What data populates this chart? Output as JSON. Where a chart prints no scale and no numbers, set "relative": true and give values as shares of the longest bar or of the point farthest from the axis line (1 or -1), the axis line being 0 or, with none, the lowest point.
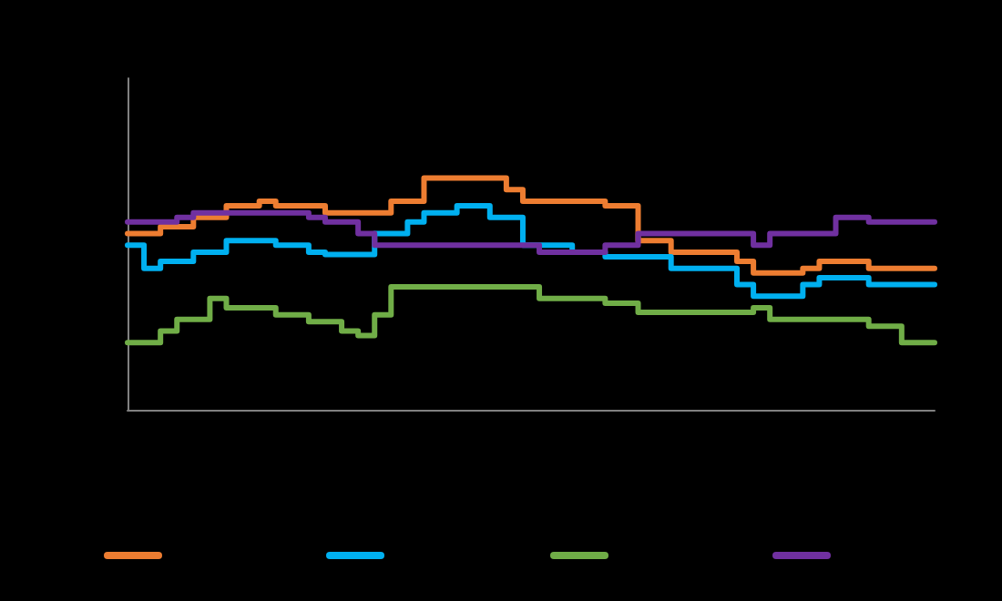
{
  "chart_data": {
    "type": "step",
    "relative": true,
    "grid": false,
    "categories": [
      null,
      null,
      null,
      null,
      null,
      null,
      null,
      null,
      null,
      null,
      null,
      null,
      null,
      null,
      null,
      null,
      null,
      null,
      null,
      null,
      null,
      null,
      null,
      null,
      null,
      null,
      null,
      null,
      null,
      null,
      null,
      null,
      null,
      null,
      null,
      null,
      null,
      null,
      null,
      null,
      null,
      null,
      null,
      null,
      null,
      null,
      null,
      null,
      null,
      null
    ],
    "series": [
      {
        "color": "#ed7d31",
        "values": [
          0.76,
          0.76,
          0.79,
          0.79,
          0.83,
          0.83,
          0.88,
          0.88,
          0.9,
          0.88,
          0.88,
          0.88,
          0.85,
          0.85,
          0.85,
          0.85,
          0.9,
          0.9,
          1.0,
          1.0,
          1.0,
          1.0,
          1.0,
          0.95,
          0.9,
          0.9,
          0.9,
          0.9,
          0.9,
          0.88,
          0.88,
          0.73,
          0.73,
          0.68,
          0.68,
          0.68,
          0.68,
          0.64,
          0.59,
          0.59,
          0.59,
          0.61,
          0.64,
          0.64,
          0.64,
          0.61,
          0.61,
          0.61,
          0.61,
          0.61
        ]
      },
      {
        "color": "#00b0f0",
        "values": [
          0.71,
          0.61,
          0.64,
          0.64,
          0.68,
          0.68,
          0.73,
          0.73,
          0.73,
          0.71,
          0.71,
          0.68,
          0.67,
          0.67,
          0.67,
          0.76,
          0.76,
          0.81,
          0.85,
          0.85,
          0.88,
          0.88,
          0.83,
          0.83,
          0.71,
          0.71,
          0.71,
          0.68,
          0.68,
          0.66,
          0.66,
          0.66,
          0.66,
          0.61,
          0.61,
          0.61,
          0.61,
          0.54,
          0.49,
          0.49,
          0.49,
          0.54,
          0.57,
          0.57,
          0.57,
          0.54,
          0.54,
          0.54,
          0.54,
          0.54
        ]
      },
      {
        "color": "#70ad47",
        "values": [
          0.29,
          0.29,
          0.34,
          0.39,
          0.39,
          0.48,
          0.44,
          0.44,
          0.44,
          0.41,
          0.41,
          0.38,
          0.38,
          0.34,
          0.32,
          0.41,
          0.53,
          0.53,
          0.53,
          0.53,
          0.53,
          0.53,
          0.53,
          0.53,
          0.53,
          0.48,
          0.48,
          0.48,
          0.48,
          0.46,
          0.46,
          0.42,
          0.42,
          0.42,
          0.42,
          0.42,
          0.42,
          0.42,
          0.44,
          0.39,
          0.39,
          0.39,
          0.39,
          0.39,
          0.39,
          0.36,
          0.36,
          0.29,
          0.29,
          0.29
        ]
      },
      {
        "color": "#7030a0",
        "values": [
          0.81,
          0.81,
          0.81,
          0.83,
          0.85,
          0.85,
          0.85,
          0.85,
          0.85,
          0.85,
          0.85,
          0.83,
          0.81,
          0.81,
          0.76,
          0.71,
          0.71,
          0.71,
          0.71,
          0.71,
          0.71,
          0.71,
          0.71,
          0.71,
          0.71,
          0.68,
          0.68,
          0.68,
          0.68,
          0.71,
          0.71,
          0.76,
          0.76,
          0.76,
          0.76,
          0.76,
          0.76,
          0.76,
          0.71,
          0.76,
          0.76,
          0.76,
          0.76,
          0.83,
          0.83,
          0.81,
          0.81,
          0.81,
          0.81,
          0.81
        ]
      }
    ]
  }
}
